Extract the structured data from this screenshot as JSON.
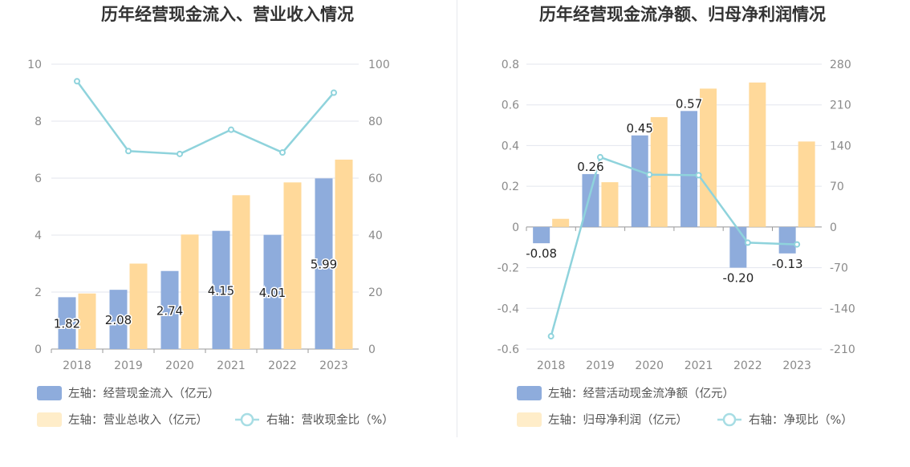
{
  "chart_data": [
    {
      "type": "bar",
      "title": "历年经营现金流入、营业收入情况",
      "categories": [
        "2018",
        "2019",
        "2020",
        "2021",
        "2022",
        "2023"
      ],
      "left_axis": {
        "ylim": [
          0,
          10
        ],
        "ticks": [
          "0",
          "2",
          "4",
          "6",
          "8",
          "10"
        ]
      },
      "right_axis": {
        "ylim": [
          0,
          100
        ],
        "ticks": [
          "0",
          "20",
          "40",
          "60",
          "80",
          "100"
        ]
      },
      "series": [
        {
          "name": "左轴：经营现金流入（亿元）",
          "type": "bar",
          "axis": "left",
          "color": "#8eacdc",
          "values": [
            1.82,
            2.08,
            2.74,
            4.15,
            4.01,
            5.99
          ],
          "labels": [
            "1.82",
            "2.08",
            "2.74",
            "4.15",
            "4.01",
            "5.99"
          ]
        },
        {
          "name": "左轴：营业总收入（亿元）",
          "type": "bar",
          "axis": "left",
          "color": "#ffd99a",
          "values": [
            1.95,
            3.0,
            4.02,
            5.4,
            5.85,
            6.65
          ]
        },
        {
          "name": "右轴：营收现金比（%）",
          "type": "line",
          "axis": "right",
          "color": "#8fd3dc",
          "values": [
            94,
            69.5,
            68.5,
            77,
            69,
            90
          ]
        }
      ],
      "legend_position": "bottom-left",
      "grid": true
    },
    {
      "type": "bar",
      "title": "历年经营现金流净额、归母净利润情况",
      "categories": [
        "2018",
        "2019",
        "2020",
        "2021",
        "2022",
        "2023"
      ],
      "left_axis": {
        "ylim": [
          -0.6,
          0.8
        ],
        "ticks": [
          "-0.6",
          "-0.4",
          "-0.2",
          "0",
          "0.2",
          "0.4",
          "0.6",
          "0.8"
        ]
      },
      "right_axis": {
        "ylim": [
          -210,
          280
        ],
        "ticks": [
          "-210",
          "-140",
          "-70",
          "0",
          "70",
          "140",
          "210",
          "280"
        ]
      },
      "series": [
        {
          "name": "左轴：经营活动现金流净额（亿元）",
          "type": "bar",
          "axis": "left",
          "color": "#8eacdc",
          "values": [
            -0.08,
            0.26,
            0.45,
            0.57,
            -0.2,
            -0.13
          ],
          "labels": [
            "-0.08",
            "0.26",
            "0.45",
            "0.57",
            "-0.20",
            "-0.13"
          ]
        },
        {
          "name": "左轴：归母净利润（亿元）",
          "type": "bar",
          "axis": "left",
          "color": "#ffd99a",
          "values": [
            0.04,
            0.22,
            0.54,
            0.68,
            0.71,
            0.42
          ]
        },
        {
          "name": "右轴：净现比（%）",
          "type": "line",
          "axis": "right",
          "color": "#8fd3dc",
          "values": [
            -188,
            120,
            90,
            89,
            -27,
            -30
          ]
        }
      ],
      "legend_position": "bottom-left",
      "grid": true
    }
  ]
}
